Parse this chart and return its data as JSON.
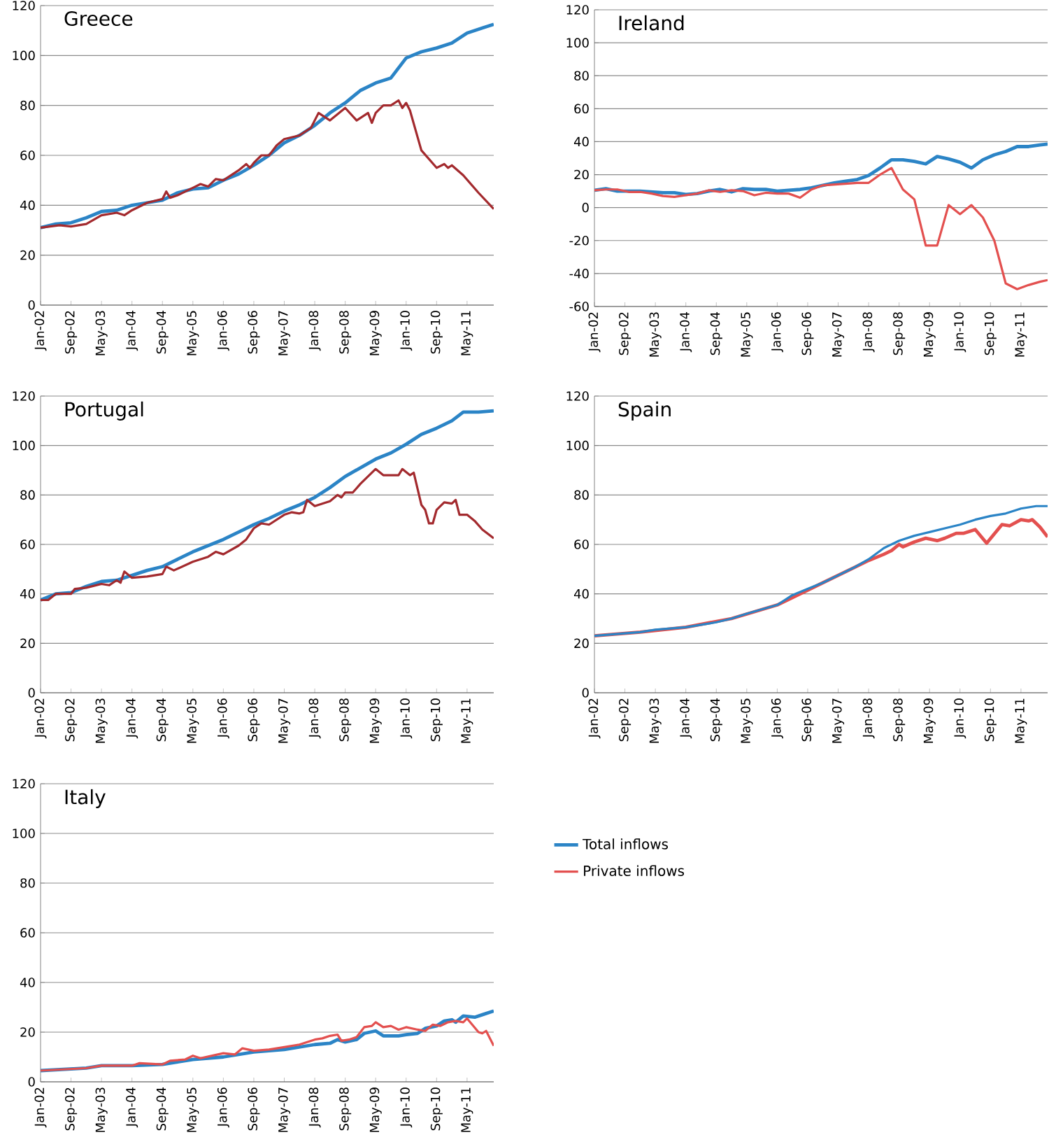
{
  "chart_data": [
    {
      "type": "line",
      "title": "Greece",
      "xlim": [
        "2002-01",
        "2011-12"
      ],
      "ylim": [
        0,
        120
      ],
      "yticks": [
        0,
        20,
        40,
        60,
        80,
        100,
        120
      ],
      "grid": "y",
      "xticks": [
        {
          "value": "2002-01",
          "label": "Jan-02"
        },
        {
          "value": "2002-09",
          "label": "Sep-02"
        },
        {
          "value": "2003-05",
          "label": "May-03"
        },
        {
          "value": "2004-01",
          "label": "Jan-04"
        },
        {
          "value": "2004-09",
          "label": "Sep-04"
        },
        {
          "value": "2005-05",
          "label": "May-05"
        },
        {
          "value": "2006-01",
          "label": "Jan-06"
        },
        {
          "value": "2006-09",
          "label": "Sep-06"
        },
        {
          "value": "2007-05",
          "label": "May-07"
        },
        {
          "value": "2008-01",
          "label": "Jan-08"
        },
        {
          "value": "2008-09",
          "label": "Sep-08"
        },
        {
          "value": "2009-05",
          "label": "May-09"
        },
        {
          "value": "2010-01",
          "label": "Jan-10"
        },
        {
          "value": "2010-09",
          "label": "Sep-10"
        },
        {
          "value": "2011-05",
          "label": "May-11"
        }
      ],
      "series": [
        {
          "color": "#2b84c6",
          "x": [
            "2002-01",
            "2002-05",
            "2002-09",
            "2003-01",
            "2003-05",
            "2003-09",
            "2004-01",
            "2004-05",
            "2004-09",
            "2005-01",
            "2005-05",
            "2005-09",
            "2006-01",
            "2006-05",
            "2006-09",
            "2007-01",
            "2007-05",
            "2007-09",
            "2008-01",
            "2008-05",
            "2008-09",
            "2009-01",
            "2009-05",
            "2009-09",
            "2010-01",
            "2010-05",
            "2010-09",
            "2011-01",
            "2011-05",
            "2011-09",
            "2011-12"
          ],
          "values": [
            31,
            32.5,
            33,
            35,
            37.5,
            38,
            40,
            41,
            42,
            45,
            46.5,
            47,
            50,
            52.5,
            56,
            60,
            65,
            68,
            72,
            77,
            81,
            86,
            89,
            91,
            99,
            101.5,
            103,
            105,
            109,
            111,
            112.5
          ]
        },
        {
          "color": "#a32a2e",
          "x": [
            "2002-01",
            "2002-06",
            "2002-09",
            "2003-01",
            "2003-05",
            "2003-09",
            "2003-11",
            "2004-01",
            "2004-05",
            "2004-09",
            "2004-10",
            "2004-11",
            "2005-01",
            "2005-05",
            "2005-07",
            "2005-09",
            "2005-11",
            "2006-01",
            "2006-05",
            "2006-07",
            "2006-08",
            "2006-09",
            "2006-11",
            "2007-01",
            "2007-03",
            "2007-05",
            "2007-09",
            "2007-12",
            "2008-02",
            "2008-05",
            "2008-09",
            "2008-12",
            "2009-03",
            "2009-04",
            "2009-05",
            "2009-07",
            "2009-09",
            "2009-11",
            "2009-12",
            "2010-01",
            "2010-02",
            "2010-05",
            "2010-09",
            "2010-11",
            "2010-12",
            "2011-01",
            "2011-04",
            "2011-08",
            "2011-12"
          ],
          "values": [
            31,
            32,
            31.5,
            32.5,
            36,
            37,
            36,
            38,
            41,
            42.5,
            45.5,
            43,
            44,
            47,
            48.5,
            47.5,
            50.5,
            50,
            54,
            56.5,
            55,
            57,
            60,
            60,
            64,
            66.5,
            68,
            71,
            77,
            74,
            79,
            74,
            77,
            73,
            77,
            80,
            80,
            82,
            79,
            81,
            78,
            62,
            55,
            56.5,
            55,
            56,
            52,
            45,
            38.5
          ]
        }
      ]
    },
    {
      "type": "line",
      "title": "Ireland",
      "xlim": [
        "2002-01",
        "2011-12"
      ],
      "ylim": [
        -60,
        120
      ],
      "yticks": [
        -60,
        -40,
        -20,
        0,
        20,
        40,
        60,
        80,
        100,
        120
      ],
      "grid": "y",
      "xticks": [
        {
          "value": "2002-01",
          "label": "Jan-02"
        },
        {
          "value": "2002-09",
          "label": "Sep-02"
        },
        {
          "value": "2003-05",
          "label": "May-03"
        },
        {
          "value": "2004-01",
          "label": "Jan-04"
        },
        {
          "value": "2004-09",
          "label": "Sep-04"
        },
        {
          "value": "2005-05",
          "label": "May-05"
        },
        {
          "value": "2006-01",
          "label": "Jan-06"
        },
        {
          "value": "2006-09",
          "label": "Sep-06"
        },
        {
          "value": "2007-05",
          "label": "May-07"
        },
        {
          "value": "2008-01",
          "label": "Jan-08"
        },
        {
          "value": "2008-09",
          "label": "Sep-08"
        },
        {
          "value": "2009-05",
          "label": "May-09"
        },
        {
          "value": "2010-01",
          "label": "Jan-10"
        },
        {
          "value": "2010-09",
          "label": "Sep-10"
        },
        {
          "value": "2011-05",
          "label": "May-11"
        }
      ],
      "series": [
        {
          "color": "#2b84c6",
          "x": [
            "2002-01",
            "2002-04",
            "2002-07",
            "2002-10",
            "2003-01",
            "2003-04",
            "2003-07",
            "2003-10",
            "2004-01",
            "2004-04",
            "2004-07",
            "2004-10",
            "2005-01",
            "2005-04",
            "2005-07",
            "2005-10",
            "2006-01",
            "2006-04",
            "2006-07",
            "2006-10",
            "2007-01",
            "2007-04",
            "2007-07",
            "2007-10",
            "2008-01",
            "2008-04",
            "2008-07",
            "2008-10",
            "2009-01",
            "2009-04",
            "2009-07",
            "2009-10",
            "2010-01",
            "2010-04",
            "2010-07",
            "2010-10",
            "2011-01",
            "2011-04",
            "2011-07",
            "2011-10",
            "2011-12"
          ],
          "values": [
            10.5,
            11.5,
            10,
            10,
            10,
            9.5,
            9,
            9,
            8,
            8.5,
            10,
            11,
            9.5,
            11.5,
            11,
            11,
            10,
            10.5,
            11,
            12,
            13.5,
            15,
            16,
            17,
            19.5,
            24,
            29,
            29,
            28,
            26.5,
            31,
            29.5,
            27.5,
            24,
            29,
            32,
            34,
            37,
            37,
            38,
            38.5
          ]
        },
        {
          "color": "#e3504f",
          "x": [
            "2002-01",
            "2002-04",
            "2002-07",
            "2002-10",
            "2003-01",
            "2003-04",
            "2003-07",
            "2003-10",
            "2004-01",
            "2004-04",
            "2004-07",
            "2004-10",
            "2005-01",
            "2005-04",
            "2005-07",
            "2005-10",
            "2006-01",
            "2006-04",
            "2006-07",
            "2006-10",
            "2007-01",
            "2007-04",
            "2007-07",
            "2007-10",
            "2008-01",
            "2008-04",
            "2008-07",
            "2008-10",
            "2009-01",
            "2009-04",
            "2009-07",
            "2009-10",
            "2010-01",
            "2010-04",
            "2010-07",
            "2010-10",
            "2011-01",
            "2011-04",
            "2011-07",
            "2011-10",
            "2011-12"
          ],
          "values": [
            10.5,
            11,
            11,
            9.5,
            9.5,
            8.5,
            7,
            6.5,
            7.5,
            8.5,
            10.5,
            9.5,
            10.5,
            10,
            7.5,
            9,
            8.5,
            8.5,
            6,
            11,
            13.5,
            14,
            14.5,
            15,
            15,
            20,
            24,
            11,
            5,
            -23,
            -23,
            1.5,
            -4,
            1.5,
            -6,
            -20,
            -46,
            -49.5,
            -47,
            -45,
            -44
          ]
        }
      ]
    },
    {
      "type": "line",
      "title": "Portugal",
      "xlim": [
        "2002-01",
        "2011-12"
      ],
      "ylim": [
        0,
        120
      ],
      "yticks": [
        0,
        20,
        40,
        60,
        80,
        100,
        120
      ],
      "grid": "y",
      "xticks": [
        {
          "value": "2002-01",
          "label": "Jan-02"
        },
        {
          "value": "2002-09",
          "label": "Sep-02"
        },
        {
          "value": "2003-05",
          "label": "May-03"
        },
        {
          "value": "2004-01",
          "label": "Jan-04"
        },
        {
          "value": "2004-09",
          "label": "Sep-04"
        },
        {
          "value": "2005-05",
          "label": "May-05"
        },
        {
          "value": "2006-01",
          "label": "Jan-06"
        },
        {
          "value": "2006-09",
          "label": "Sep-06"
        },
        {
          "value": "2007-05",
          "label": "May-07"
        },
        {
          "value": "2008-01",
          "label": "Jan-08"
        },
        {
          "value": "2008-09",
          "label": "Sep-08"
        },
        {
          "value": "2009-05",
          "label": "May-09"
        },
        {
          "value": "2010-01",
          "label": "Jan-10"
        },
        {
          "value": "2010-09",
          "label": "Sep-10"
        },
        {
          "value": "2011-05",
          "label": "May-11"
        }
      ],
      "series": [
        {
          "color": "#2b84c6",
          "x": [
            "2002-01",
            "2002-05",
            "2002-09",
            "2003-01",
            "2003-05",
            "2003-09",
            "2004-01",
            "2004-05",
            "2004-09",
            "2005-01",
            "2005-05",
            "2005-09",
            "2006-01",
            "2006-05",
            "2006-09",
            "2007-01",
            "2007-05",
            "2007-09",
            "2008-01",
            "2008-05",
            "2008-09",
            "2009-01",
            "2009-05",
            "2009-09",
            "2010-01",
            "2010-05",
            "2010-09",
            "2011-01",
            "2011-04",
            "2011-08",
            "2011-12"
          ],
          "values": [
            37.5,
            40,
            40.5,
            43,
            45,
            45.5,
            47.5,
            49.5,
            51,
            54,
            57,
            59.5,
            62,
            65,
            68,
            70.5,
            73.5,
            76,
            79,
            83,
            87.5,
            91,
            94.5,
            97,
            100.5,
            104.5,
            107,
            110,
            113.5,
            113.5,
            114
          ]
        },
        {
          "color": "#a32a2e",
          "x": [
            "2002-01",
            "2002-03",
            "2002-05",
            "2002-09",
            "2002-10",
            "2003-01",
            "2003-05",
            "2003-07",
            "2003-09",
            "2003-10",
            "2003-11",
            "2004-01",
            "2004-05",
            "2004-09",
            "2004-10",
            "2004-12",
            "2005-05",
            "2005-09",
            "2005-11",
            "2006-01",
            "2006-05",
            "2006-07",
            "2006-09",
            "2006-11",
            "2007-01",
            "2007-05",
            "2007-07",
            "2007-09",
            "2007-10",
            "2007-11",
            "2008-01",
            "2008-05",
            "2008-07",
            "2008-08",
            "2008-09",
            "2008-11",
            "2009-01",
            "2009-05",
            "2009-07",
            "2009-11",
            "2009-12",
            "2010-02",
            "2010-03",
            "2010-05",
            "2010-06",
            "2010-07",
            "2010-08",
            "2010-09",
            "2010-11",
            "2011-01",
            "2011-02",
            "2011-03",
            "2011-05",
            "2011-07",
            "2011-09",
            "2011-12"
          ],
          "values": [
            37.5,
            37.5,
            40,
            40,
            42,
            42.5,
            44,
            43.5,
            45.5,
            44.5,
            49,
            46.5,
            47,
            48,
            51,
            49.5,
            53,
            55,
            57,
            56,
            59.5,
            62,
            66.5,
            68.5,
            68,
            72,
            73,
            72.5,
            73,
            78,
            75.5,
            77.5,
            80,
            79,
            81,
            81,
            84.5,
            90.5,
            88,
            88,
            90.5,
            88,
            89,
            76,
            74,
            68.5,
            68.5,
            74,
            77,
            76.5,
            78,
            72,
            72,
            69.5,
            66,
            62.5
          ]
        }
      ]
    },
    {
      "type": "line",
      "title": "Spain",
      "xlim": [
        "2002-01",
        "2011-12"
      ],
      "ylim": [
        0,
        120
      ],
      "yticks": [
        0,
        20,
        40,
        60,
        80,
        100,
        120
      ],
      "grid": "y",
      "xticks": [
        {
          "value": "2002-01",
          "label": "Jan-02"
        },
        {
          "value": "2002-09",
          "label": "Sep-02"
        },
        {
          "value": "2003-05",
          "label": "May-03"
        },
        {
          "value": "2004-01",
          "label": "Jan-04"
        },
        {
          "value": "2004-09",
          "label": "Sep-04"
        },
        {
          "value": "2005-05",
          "label": "May-05"
        },
        {
          "value": "2006-01",
          "label": "Jan-06"
        },
        {
          "value": "2006-09",
          "label": "Sep-06"
        },
        {
          "value": "2007-05",
          "label": "May-07"
        },
        {
          "value": "2008-01",
          "label": "Jan-08"
        },
        {
          "value": "2008-09",
          "label": "Sep-08"
        },
        {
          "value": "2009-05",
          "label": "May-09"
        },
        {
          "value": "2010-01",
          "label": "Jan-10"
        },
        {
          "value": "2010-09",
          "label": "Sep-10"
        },
        {
          "value": "2011-05",
          "label": "May-11"
        }
      ],
      "series": [
        {
          "color": "#e3504f",
          "x": [
            "2002-01",
            "2003-01",
            "2004-01",
            "2005-01",
            "2006-01",
            "2007-01",
            "2007-09",
            "2008-01",
            "2008-05",
            "2008-07",
            "2008-09",
            "2008-10",
            "2009-01",
            "2009-04",
            "2009-07",
            "2009-09",
            "2009-12",
            "2010-02",
            "2010-05",
            "2010-08",
            "2010-12",
            "2011-02",
            "2011-05",
            "2011-07",
            "2011-08",
            "2011-10",
            "2011-12"
          ],
          "values": [
            23,
            24.5,
            26.5,
            30,
            35.5,
            44.5,
            50.5,
            53.5,
            56,
            57.5,
            60,
            59,
            61,
            62.5,
            61.5,
            62.5,
            64.5,
            64.5,
            66,
            60.5,
            68,
            67.5,
            70,
            69.5,
            70,
            67,
            63
          ]
        },
        {
          "color": "#2b84c6",
          "x": [
            "2002-01",
            "2002-09",
            "2003-01",
            "2003-05",
            "2004-01",
            "2004-09",
            "2005-01",
            "2005-05",
            "2006-01",
            "2006-05",
            "2006-09",
            "2007-01",
            "2007-05",
            "2007-09",
            "2008-01",
            "2008-05",
            "2008-09",
            "2009-01",
            "2009-05",
            "2009-09",
            "2010-01",
            "2010-05",
            "2010-09",
            "2011-01",
            "2011-05",
            "2011-09",
            "2011-12"
          ],
          "values": [
            23,
            24,
            24.5,
            25.5,
            26.5,
            28.5,
            30,
            32,
            35.5,
            39.5,
            42,
            44.5,
            47.5,
            50.5,
            54,
            58.5,
            61.5,
            63.5,
            65,
            66.5,
            68,
            70,
            71.5,
            72.5,
            74.5,
            75.5,
            75.5
          ]
        }
      ]
    },
    {
      "type": "line",
      "title": "Italy",
      "xlim": [
        "2002-01",
        "2011-12"
      ],
      "ylim": [
        0,
        120
      ],
      "yticks": [
        0,
        20,
        40,
        60,
        80,
        100,
        120
      ],
      "grid": "y",
      "legend": "right",
      "xticks": [
        {
          "value": "2002-01",
          "label": "Jan-02"
        },
        {
          "value": "2002-09",
          "label": "Sep-02"
        },
        {
          "value": "2003-05",
          "label": "May-03"
        },
        {
          "value": "2004-01",
          "label": "Jan-04"
        },
        {
          "value": "2004-09",
          "label": "Sep-04"
        },
        {
          "value": "2005-05",
          "label": "May-05"
        },
        {
          "value": "2006-01",
          "label": "Jan-06"
        },
        {
          "value": "2006-09",
          "label": "Sep-06"
        },
        {
          "value": "2007-05",
          "label": "May-07"
        },
        {
          "value": "2008-01",
          "label": "Jan-08"
        },
        {
          "value": "2008-09",
          "label": "Sep-08"
        },
        {
          "value": "2009-05",
          "label": "May-09"
        },
        {
          "value": "2010-01",
          "label": "Jan-10"
        },
        {
          "value": "2010-09",
          "label": "Sep-10"
        },
        {
          "value": "2011-05",
          "label": "May-11"
        }
      ],
      "series": [
        {
          "name": "Total inflows",
          "color": "#2b84c6",
          "x": [
            "2002-01",
            "2003-01",
            "2003-05",
            "2004-01",
            "2004-09",
            "2005-05",
            "2006-01",
            "2006-09",
            "2007-05",
            "2008-01",
            "2008-05",
            "2008-07",
            "2008-09",
            "2008-12",
            "2009-02",
            "2009-05",
            "2009-07",
            "2009-11",
            "2010-01",
            "2010-04",
            "2010-06",
            "2010-09",
            "2010-11",
            "2011-01",
            "2011-02",
            "2011-04",
            "2011-07",
            "2011-09",
            "2011-12"
          ],
          "values": [
            4.5,
            5.5,
            6.5,
            6.5,
            7,
            9,
            10,
            12,
            13,
            15,
            15.5,
            17,
            16,
            17,
            19.5,
            20.5,
            18.5,
            18.5,
            19,
            19.5,
            21.5,
            22.5,
            24.5,
            25,
            24,
            26.5,
            26,
            27,
            28.5
          ]
        },
        {
          "name": "Private inflows",
          "color": "#e3504f",
          "x": [
            "2002-01",
            "2003-01",
            "2003-05",
            "2004-01",
            "2004-03",
            "2004-09",
            "2004-11",
            "2005-03",
            "2005-05",
            "2005-07",
            "2006-01",
            "2006-04",
            "2006-06",
            "2006-09",
            "2007-01",
            "2007-05",
            "2007-09",
            "2008-01",
            "2008-03",
            "2008-05",
            "2008-07",
            "2008-08",
            "2008-10",
            "2008-12",
            "2009-02",
            "2009-04",
            "2009-05",
            "2009-07",
            "2009-09",
            "2009-11",
            "2010-01",
            "2010-04",
            "2010-06",
            "2010-08",
            "2010-10",
            "2010-12",
            "2011-02",
            "2011-04",
            "2011-05",
            "2011-08",
            "2011-09",
            "2011-10",
            "2011-12"
          ],
          "values": [
            4.5,
            5.5,
            6.5,
            6.5,
            7.5,
            7,
            8.5,
            9,
            10.5,
            9.5,
            11.5,
            11,
            13.5,
            12.5,
            13,
            14,
            15,
            17,
            17.5,
            18.5,
            19,
            16.5,
            17,
            18,
            22,
            22.5,
            24,
            22,
            22.5,
            21,
            22,
            21,
            20.5,
            23,
            22.5,
            24,
            24.5,
            24,
            25.5,
            20,
            19.5,
            20.5,
            14.5
          ]
        }
      ]
    }
  ]
}
